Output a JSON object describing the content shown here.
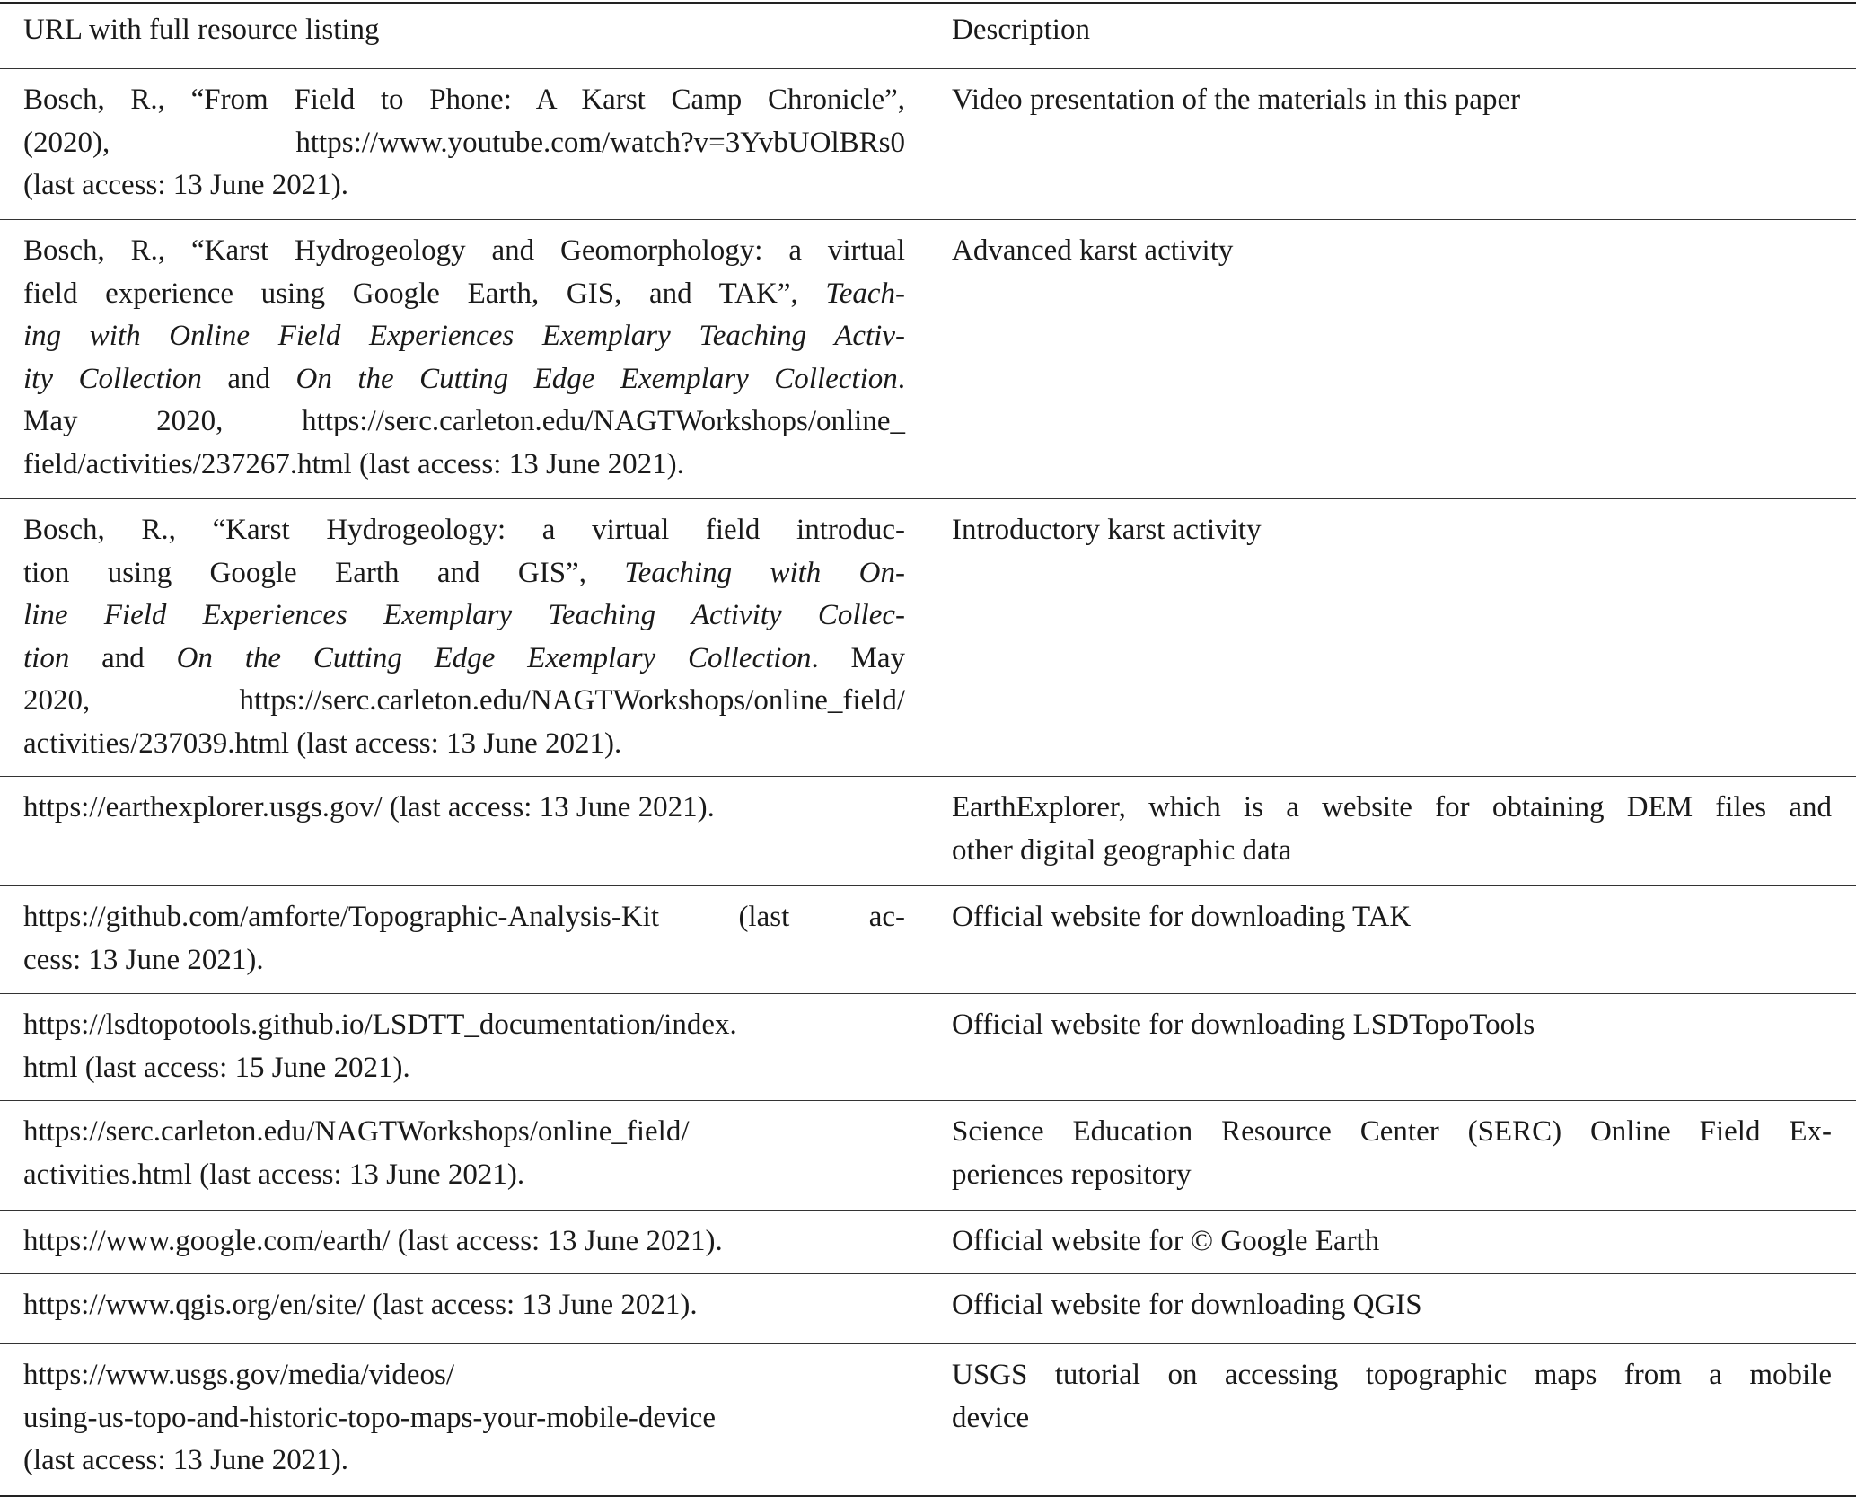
{
  "header": {
    "col1": "URL with full resource listing",
    "col2": "Description"
  },
  "rows": [
    {
      "c1": [
        [
          [
            "Bosch, R., “From Field to Phone: A Karst Camp Chronicle”,",
            0
          ]
        ],
        [
          [
            "(2020), https://www.youtube.com/watch?v=3YvbUOlBRs0",
            0
          ]
        ],
        [
          [
            "(last access: 13 June 2021).",
            0
          ]
        ]
      ],
      "c2": [
        [
          [
            "Video presentation of the materials in this paper",
            0
          ]
        ]
      ]
    },
    {
      "c1": [
        [
          [
            "Bosch, R., “Karst Hydrogeology and Geomorphology: a virtual",
            0
          ]
        ],
        [
          [
            "field experience using Google Earth, GIS, and TAK”, ",
            0
          ],
          [
            "Teach-",
            1
          ]
        ],
        [
          [
            "ing with Online Field Experiences Exemplary Teaching Activ-",
            1
          ]
        ],
        [
          [
            "ity Collection",
            1
          ],
          [
            " and ",
            0
          ],
          [
            "On the Cutting Edge Exemplary Collection",
            1
          ],
          [
            ".",
            0
          ]
        ],
        [
          [
            "May 2020, https://serc.carleton.edu/NAGTWorkshops/online_",
            0
          ]
        ],
        [
          [
            "field/activities/237267.html (last access: 13 June 2021).",
            0
          ]
        ]
      ],
      "c2": [
        [
          [
            "Advanced karst activity",
            0
          ]
        ]
      ]
    },
    {
      "c1": [
        [
          [
            "Bosch, R., “Karst Hydrogeology: a virtual field introduc-",
            0
          ]
        ],
        [
          [
            "tion using Google Earth and GIS”, ",
            0
          ],
          [
            "Teaching with On-",
            1
          ]
        ],
        [
          [
            "line Field Experiences Exemplary Teaching Activity Collec-",
            1
          ]
        ],
        [
          [
            "tion",
            1
          ],
          [
            " and ",
            0
          ],
          [
            "On the Cutting Edge Exemplary Collection",
            1
          ],
          [
            ". May",
            0
          ]
        ],
        [
          [
            "2020, https://serc.carleton.edu/NAGTWorkshops/online_field/",
            0
          ]
        ],
        [
          [
            "activities/237039.html (last access: 13 June 2021).",
            0
          ]
        ]
      ],
      "c2": [
        [
          [
            "Introductory karst activity",
            0
          ]
        ]
      ]
    },
    {
      "c1": [
        [
          [
            "https://earthexplorer.usgs.gov/ (last access: 13 June 2021).",
            0
          ]
        ]
      ],
      "c2": [
        [
          [
            "EarthExplorer, which is a website for obtaining DEM files and",
            0
          ]
        ],
        [
          [
            "other digital geographic data",
            0
          ]
        ]
      ]
    },
    {
      "c1": [
        [
          [
            "https://github.com/amforte/Topographic-Analysis-Kit (last ac-",
            0
          ]
        ],
        [
          [
            "cess: 13 June 2021).",
            0
          ]
        ]
      ],
      "c2": [
        [
          [
            "Official website for downloading TAK",
            0
          ]
        ]
      ]
    },
    {
      "c1": [
        [
          [
            "https://lsdtopotools.github.io/LSDTT_documentation/index.",
            0
          ]
        ],
        [
          [
            "html (last access: 15 June 2021).",
            0
          ]
        ]
      ],
      "c2": [
        [
          [
            "Official website for downloading LSDTopoTools",
            0
          ]
        ]
      ]
    },
    {
      "c1": [
        [
          [
            "https://serc.carleton.edu/NAGTWorkshops/online_field/",
            0
          ]
        ],
        [
          [
            "activities.html (last access: 13 June 2021).",
            0
          ]
        ]
      ],
      "c2": [
        [
          [
            "Science Education Resource Center (SERC) Online Field Ex-",
            0
          ]
        ],
        [
          [
            "periences repository",
            0
          ]
        ]
      ]
    },
    {
      "c1": [
        [
          [
            "https://www.google.com/earth/ (last access: 13 June 2021).",
            0
          ]
        ]
      ],
      "c2": [
        [
          [
            "Official website for © Google Earth",
            0
          ]
        ]
      ]
    },
    {
      "c1": [
        [
          [
            "https://www.qgis.org/en/site/ (last access: 13 June 2021).",
            0
          ]
        ]
      ],
      "c2": [
        [
          [
            "Official website for downloading QGIS",
            0
          ]
        ]
      ]
    },
    {
      "c1": [
        [
          [
            "https://www.usgs.gov/media/videos/",
            0
          ]
        ],
        [
          [
            "using-us-topo-and-historic-topo-maps-your-mobile-device",
            0
          ]
        ],
        [
          [
            "(last access: 13 June 2021).",
            0
          ]
        ]
      ],
      "c2": [
        [
          [
            "USGS tutorial on accessing topographic maps from a mobile",
            0
          ]
        ],
        [
          [
            "device",
            0
          ]
        ]
      ]
    }
  ]
}
